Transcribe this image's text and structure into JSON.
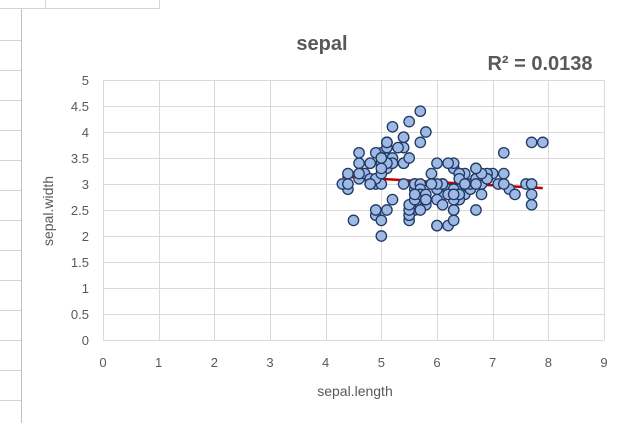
{
  "chart_data": {
    "type": "scatter",
    "title": "sepal",
    "annotation": "R² = 0.0138",
    "xlabel": "sepal.length",
    "ylabel": "sepal.width",
    "xlim": [
      0,
      9
    ],
    "ylim": [
      0,
      5
    ],
    "x_ticks": [
      "0",
      "1",
      "2",
      "3",
      "4",
      "5",
      "6",
      "7",
      "8",
      "9"
    ],
    "y_ticks": [
      "0",
      "0.5",
      "1",
      "1.5",
      "2",
      "2.5",
      "3",
      "3.5",
      "4",
      "4.5",
      "5"
    ],
    "grid": true,
    "marker_fill": "#9db9e4",
    "marker_stroke": "#1f3864",
    "trendline_color": "#c00000",
    "trendline": {
      "x": [
        4.3,
        7.9
      ],
      "y": [
        3.14,
        2.92
      ]
    },
    "points": [
      [
        5.1,
        3.5
      ],
      [
        4.9,
        3.0
      ],
      [
        4.7,
        3.2
      ],
      [
        4.6,
        3.1
      ],
      [
        5.0,
        3.6
      ],
      [
        5.4,
        3.9
      ],
      [
        4.6,
        3.4
      ],
      [
        5.0,
        3.4
      ],
      [
        4.4,
        2.9
      ],
      [
        4.9,
        3.1
      ],
      [
        5.4,
        3.7
      ],
      [
        4.8,
        3.4
      ],
      [
        4.8,
        3.0
      ],
      [
        4.3,
        3.0
      ],
      [
        5.8,
        4.0
      ],
      [
        5.7,
        4.4
      ],
      [
        5.4,
        3.9
      ],
      [
        5.1,
        3.5
      ],
      [
        5.7,
        3.8
      ],
      [
        5.1,
        3.8
      ],
      [
        5.4,
        3.4
      ],
      [
        5.1,
        3.7
      ],
      [
        4.6,
        3.6
      ],
      [
        5.1,
        3.3
      ],
      [
        4.8,
        3.4
      ],
      [
        5.0,
        3.0
      ],
      [
        5.0,
        3.4
      ],
      [
        5.2,
        3.5
      ],
      [
        5.2,
        3.4
      ],
      [
        4.7,
        3.2
      ],
      [
        4.8,
        3.1
      ],
      [
        5.4,
        3.4
      ],
      [
        5.2,
        4.1
      ],
      [
        5.5,
        4.2
      ],
      [
        4.9,
        3.1
      ],
      [
        5.0,
        3.2
      ],
      [
        5.5,
        3.5
      ],
      [
        4.9,
        3.6
      ],
      [
        4.4,
        3.0
      ],
      [
        5.1,
        3.4
      ],
      [
        5.0,
        3.5
      ],
      [
        4.5,
        2.3
      ],
      [
        4.4,
        3.2
      ],
      [
        5.0,
        3.5
      ],
      [
        5.1,
        3.8
      ],
      [
        4.8,
        3.0
      ],
      [
        5.1,
        3.8
      ],
      [
        4.6,
        3.2
      ],
      [
        5.3,
        3.7
      ],
      [
        5.0,
        3.3
      ],
      [
        7.0,
        3.2
      ],
      [
        6.4,
        3.2
      ],
      [
        6.9,
        3.1
      ],
      [
        5.5,
        2.3
      ],
      [
        6.5,
        2.8
      ],
      [
        5.7,
        2.8
      ],
      [
        6.3,
        3.3
      ],
      [
        4.9,
        2.4
      ],
      [
        6.6,
        2.9
      ],
      [
        5.2,
        2.7
      ],
      [
        5.0,
        2.0
      ],
      [
        5.9,
        3.0
      ],
      [
        6.0,
        2.2
      ],
      [
        6.1,
        2.9
      ],
      [
        5.6,
        2.9
      ],
      [
        6.7,
        3.1
      ],
      [
        5.6,
        3.0
      ],
      [
        5.8,
        2.7
      ],
      [
        6.2,
        2.2
      ],
      [
        5.6,
        2.5
      ],
      [
        5.9,
        3.2
      ],
      [
        6.1,
        2.8
      ],
      [
        6.3,
        2.5
      ],
      [
        6.1,
        2.8
      ],
      [
        6.4,
        2.9
      ],
      [
        6.6,
        3.0
      ],
      [
        6.8,
        2.8
      ],
      [
        6.7,
        3.0
      ],
      [
        6.0,
        2.9
      ],
      [
        5.7,
        2.6
      ],
      [
        5.5,
        2.4
      ],
      [
        5.5,
        2.4
      ],
      [
        5.8,
        2.7
      ],
      [
        6.0,
        2.7
      ],
      [
        5.4,
        3.0
      ],
      [
        6.0,
        3.4
      ],
      [
        6.7,
        3.1
      ],
      [
        6.3,
        2.3
      ],
      [
        5.6,
        3.0
      ],
      [
        5.5,
        2.5
      ],
      [
        5.5,
        2.6
      ],
      [
        6.1,
        3.0
      ],
      [
        5.8,
        2.6
      ],
      [
        5.0,
        2.3
      ],
      [
        5.6,
        2.7
      ],
      [
        5.7,
        3.0
      ],
      [
        5.7,
        2.9
      ],
      [
        6.2,
        2.9
      ],
      [
        5.1,
        2.5
      ],
      [
        5.7,
        2.8
      ],
      [
        6.3,
        3.3
      ],
      [
        5.8,
        2.7
      ],
      [
        7.1,
        3.0
      ],
      [
        6.3,
        2.9
      ],
      [
        6.5,
        3.0
      ],
      [
        7.6,
        3.0
      ],
      [
        4.9,
        2.5
      ],
      [
        7.3,
        2.9
      ],
      [
        6.7,
        2.5
      ],
      [
        7.2,
        3.6
      ],
      [
        6.5,
        3.2
      ],
      [
        6.4,
        2.7
      ],
      [
        6.8,
        3.0
      ],
      [
        5.7,
        2.5
      ],
      [
        5.8,
        2.8
      ],
      [
        6.4,
        3.2
      ],
      [
        6.5,
        3.0
      ],
      [
        7.7,
        3.8
      ],
      [
        7.7,
        2.6
      ],
      [
        6.0,
        2.2
      ],
      [
        6.9,
        3.2
      ],
      [
        5.6,
        2.8
      ],
      [
        7.7,
        2.8
      ],
      [
        6.3,
        2.7
      ],
      [
        6.7,
        3.3
      ],
      [
        7.2,
        3.2
      ],
      [
        6.2,
        2.8
      ],
      [
        6.1,
        3.0
      ],
      [
        6.4,
        2.8
      ],
      [
        7.2,
        3.0
      ],
      [
        7.4,
        2.8
      ],
      [
        7.9,
        3.8
      ],
      [
        6.4,
        2.8
      ],
      [
        6.3,
        2.8
      ],
      [
        6.1,
        2.6
      ],
      [
        7.7,
        3.0
      ],
      [
        6.3,
        3.4
      ],
      [
        6.4,
        3.1
      ],
      [
        6.0,
        3.0
      ],
      [
        6.9,
        3.1
      ],
      [
        6.7,
        3.1
      ],
      [
        6.9,
        3.1
      ],
      [
        5.8,
        2.7
      ],
      [
        6.8,
        3.2
      ],
      [
        6.7,
        3.3
      ],
      [
        6.7,
        3.0
      ],
      [
        6.3,
        2.5
      ],
      [
        6.5,
        3.0
      ],
      [
        6.2,
        3.4
      ],
      [
        5.9,
        3.0
      ]
    ]
  }
}
